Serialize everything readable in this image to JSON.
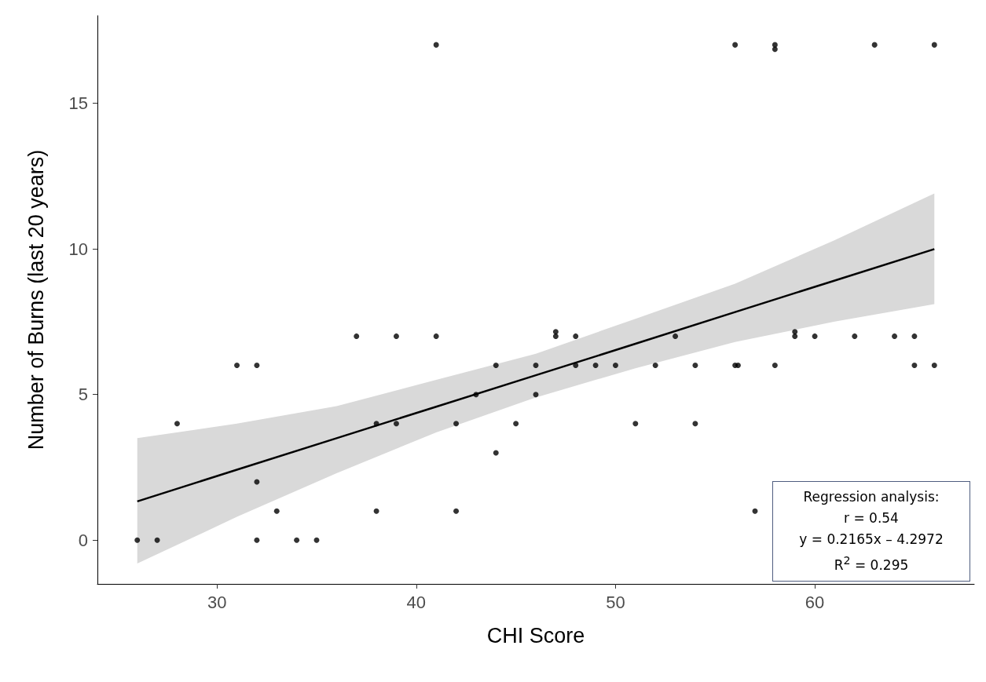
{
  "chart_data": {
    "type": "scatter",
    "xlabel": "CHI Score",
    "ylabel": "Number of Burns (last 20 years)",
    "xlim": [
      24,
      68
    ],
    "xticks": [
      30,
      40,
      50,
      60
    ],
    "ylim": [
      -1.5,
      18
    ],
    "yticks": [
      0,
      5,
      10,
      15
    ],
    "grid": false,
    "series": [
      {
        "marker": "circle",
        "color": "#000000",
        "x": [
          26,
          27,
          28,
          31,
          32,
          32,
          32,
          33,
          34,
          35,
          37,
          38,
          38,
          39,
          39,
          41,
          41,
          42,
          42,
          43,
          44,
          44,
          45,
          46,
          46,
          47,
          47,
          48,
          48,
          49,
          50,
          51,
          52,
          53,
          54,
          54,
          56,
          56,
          56.15,
          57,
          58,
          58,
          58,
          59,
          59,
          60,
          62,
          63,
          64,
          65,
          65,
          66,
          66
        ],
        "values": [
          0,
          0,
          4,
          6,
          6,
          2,
          0,
          1,
          0,
          0,
          7,
          4,
          1,
          7,
          4,
          17,
          7,
          4,
          1,
          5,
          6,
          3,
          4,
          6,
          5,
          7,
          7.15,
          7,
          6,
          6,
          6,
          4,
          6,
          7,
          6,
          4,
          17,
          6,
          6,
          1,
          17,
          16.85,
          6,
          7,
          7.15,
          7,
          7,
          17,
          7,
          7,
          6,
          17,
          6
        ]
      },
      {
        "type": "line",
        "marker": "none",
        "color": "#000000",
        "x": [
          26,
          31,
          36,
          41,
          46,
          51,
          56,
          61,
          66
        ],
        "values": [
          1.33,
          2.42,
          3.5,
          4.58,
          5.66,
          6.74,
          7.83,
          8.91,
          9.99
        ],
        "lower": [
          -0.8,
          0.8,
          2.3,
          3.7,
          4.9,
          5.9,
          6.8,
          7.5,
          8.1
        ],
        "upper": [
          3.5,
          4.0,
          4.6,
          5.5,
          6.4,
          7.6,
          8.8,
          10.3,
          11.9
        ]
      }
    ],
    "annotations": [
      "Regression analysis:",
      "r = 0.54",
      "y = 0.2165x – 4.2972",
      "R$^{2}$ = 0.295"
    ]
  }
}
